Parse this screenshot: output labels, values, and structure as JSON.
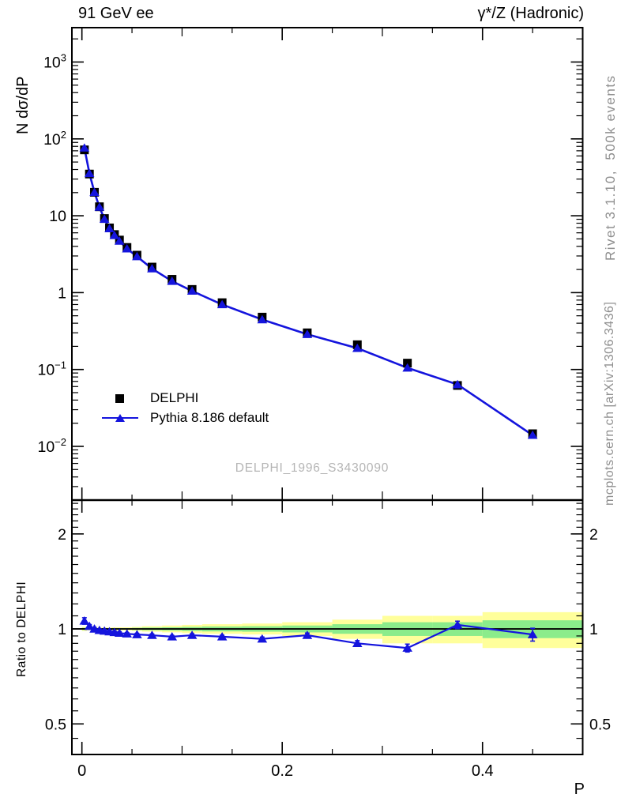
{
  "titles": {
    "left": "91 GeV ee",
    "right": "γ*/Z (Hadronic)"
  },
  "watermark": "DELPHI_1996_S3430090",
  "side_notes": {
    "top": "Rivet 3.1.10,  500k events",
    "bottom": "mcplots.cern.ch [arXiv:1306.3436]",
    "color": "#8f8f8f",
    "watermark_color": "#b5b5b5"
  },
  "chart_data": {
    "type": "line",
    "title": "91 GeV ee — γ*/Z (Hadronic)",
    "xlabel": "P",
    "ylabel": "N dσ/dP",
    "ratio_ylabel": "Ratio to DELPHI",
    "xlim": [
      -0.01,
      0.5
    ],
    "ylim": [
      0.002,
      2800
    ],
    "ratio_ylim": [
      0.4,
      2.56
    ],
    "grid": false,
    "legend_position": "left-middle",
    "x": [
      0.0025,
      0.0075,
      0.0125,
      0.0175,
      0.0225,
      0.0275,
      0.0325,
      0.0375,
      0.045,
      0.055,
      0.07,
      0.09,
      0.11,
      0.14,
      0.18,
      0.225,
      0.275,
      0.325,
      0.375,
      0.45
    ],
    "series": [
      {
        "name": "DELPHI",
        "marker": "square",
        "color": "#000000",
        "values": [
          72,
          34.9,
          20.2,
          13.1,
          9.2,
          6.95,
          5.7,
          4.83,
          3.87,
          3.07,
          2.15,
          1.49,
          1.1,
          0.74,
          0.48,
          0.3,
          0.21,
          0.121,
          0.062,
          0.0146
        ]
      },
      {
        "name": "Pythia 8.186 default",
        "marker": "triangle",
        "color": "#1414dd",
        "values": [
          76.3,
          35.6,
          20.2,
          12.97,
          9.06,
          6.81,
          5.56,
          4.69,
          3.73,
          2.95,
          2.05,
          1.41,
          1.05,
          0.7,
          0.446,
          0.287,
          0.189,
          0.105,
          0.0639,
          0.014
        ]
      }
    ],
    "ratio": {
      "values": [
        1.06,
        1.02,
        1.0,
        0.99,
        0.985,
        0.98,
        0.975,
        0.97,
        0.965,
        0.96,
        0.955,
        0.945,
        0.955,
        0.945,
        0.93,
        0.955,
        0.9,
        0.87,
        1.03,
        0.96
      ],
      "errors": [
        0.025,
        0.012,
        0.01,
        0.01,
        0.01,
        0.01,
        0.01,
        0.01,
        0.008,
        0.008,
        0.008,
        0.008,
        0.01,
        0.01,
        0.012,
        0.015,
        0.018,
        0.025,
        0.028,
        0.045
      ]
    },
    "bands": {
      "bin_edges": [
        0,
        0.005,
        0.01,
        0.015,
        0.02,
        0.025,
        0.03,
        0.035,
        0.04,
        0.05,
        0.06,
        0.08,
        0.1,
        0.12,
        0.16,
        0.2,
        0.25,
        0.3,
        0.35,
        0.4,
        0.5
      ],
      "yellow": [
        0.015,
        0.01,
        0.01,
        0.01,
        0.01,
        0.01,
        0.012,
        0.012,
        0.012,
        0.015,
        0.02,
        0.025,
        0.03,
        0.035,
        0.04,
        0.05,
        0.07,
        0.1,
        0.1,
        0.13
      ],
      "green": [
        0.008,
        0.005,
        0.005,
        0.005,
        0.005,
        0.005,
        0.006,
        0.006,
        0.006,
        0.008,
        0.01,
        0.012,
        0.015,
        0.018,
        0.02,
        0.025,
        0.035,
        0.05,
        0.05,
        0.065
      ],
      "yellow_color": "#ffff9b",
      "green_color": "#8bec8b"
    },
    "yticks": [
      {
        "value": 1000,
        "label": "10^3"
      },
      {
        "value": 100,
        "label": "10^2"
      },
      {
        "value": 10,
        "label": "10"
      },
      {
        "value": 1,
        "label": "1"
      },
      {
        "value": 0.1,
        "label": "10^-1"
      },
      {
        "value": 0.01,
        "label": "10^-2"
      }
    ],
    "xticks": [
      {
        "value": 0,
        "label": "0"
      },
      {
        "value": 0.2,
        "label": "0.2"
      },
      {
        "value": 0.4,
        "label": "0.4"
      }
    ],
    "ratio_yticks": [
      {
        "value": 2,
        "label": "2"
      },
      {
        "value": 1,
        "label": "1"
      },
      {
        "value": 0.5,
        "label": "0.5"
      }
    ]
  }
}
